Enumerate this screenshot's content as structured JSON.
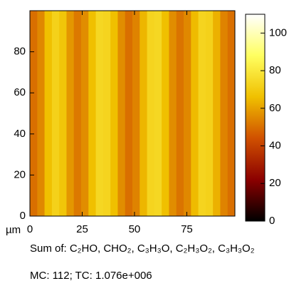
{
  "chart_data": {
    "type": "heatmap",
    "x_label": "µm",
    "caption": "Sum of: C₂HO, CHO₂, C₃H₃O, C₂H₃O₂, C₃H₃O₂",
    "footer": "MC: 112; TC: 1.076e+006",
    "x_edges": [
      0,
      3.5,
      7,
      10.5,
      14,
      17.5,
      21,
      24.5,
      28,
      31.5,
      35,
      38.5,
      42,
      45.5,
      49,
      52.5,
      56,
      59.5,
      63,
      66.5,
      70,
      73.5,
      77,
      80.5,
      84,
      87.5,
      91,
      94.5,
      98
    ],
    "values": [
      50,
      55,
      66,
      72,
      68,
      58,
      52,
      56,
      66,
      74,
      73,
      66,
      56,
      50,
      54,
      64,
      73,
      74,
      66,
      56,
      51,
      55,
      65,
      73,
      72,
      63,
      54,
      50
    ],
    "xlim": [
      0,
      98
    ],
    "xticks": [
      0,
      25,
      50,
      75
    ],
    "ylim": [
      0,
      100
    ],
    "yticks": [
      0,
      20,
      40,
      60,
      80
    ],
    "zlim": [
      0,
      110
    ],
    "zticks": [
      0,
      20,
      40,
      60,
      80,
      100
    ],
    "colormap": [
      "#000000",
      "#8b0000",
      "#d05000",
      "#f0c000",
      "#ffff60",
      "#ffffff"
    ]
  }
}
